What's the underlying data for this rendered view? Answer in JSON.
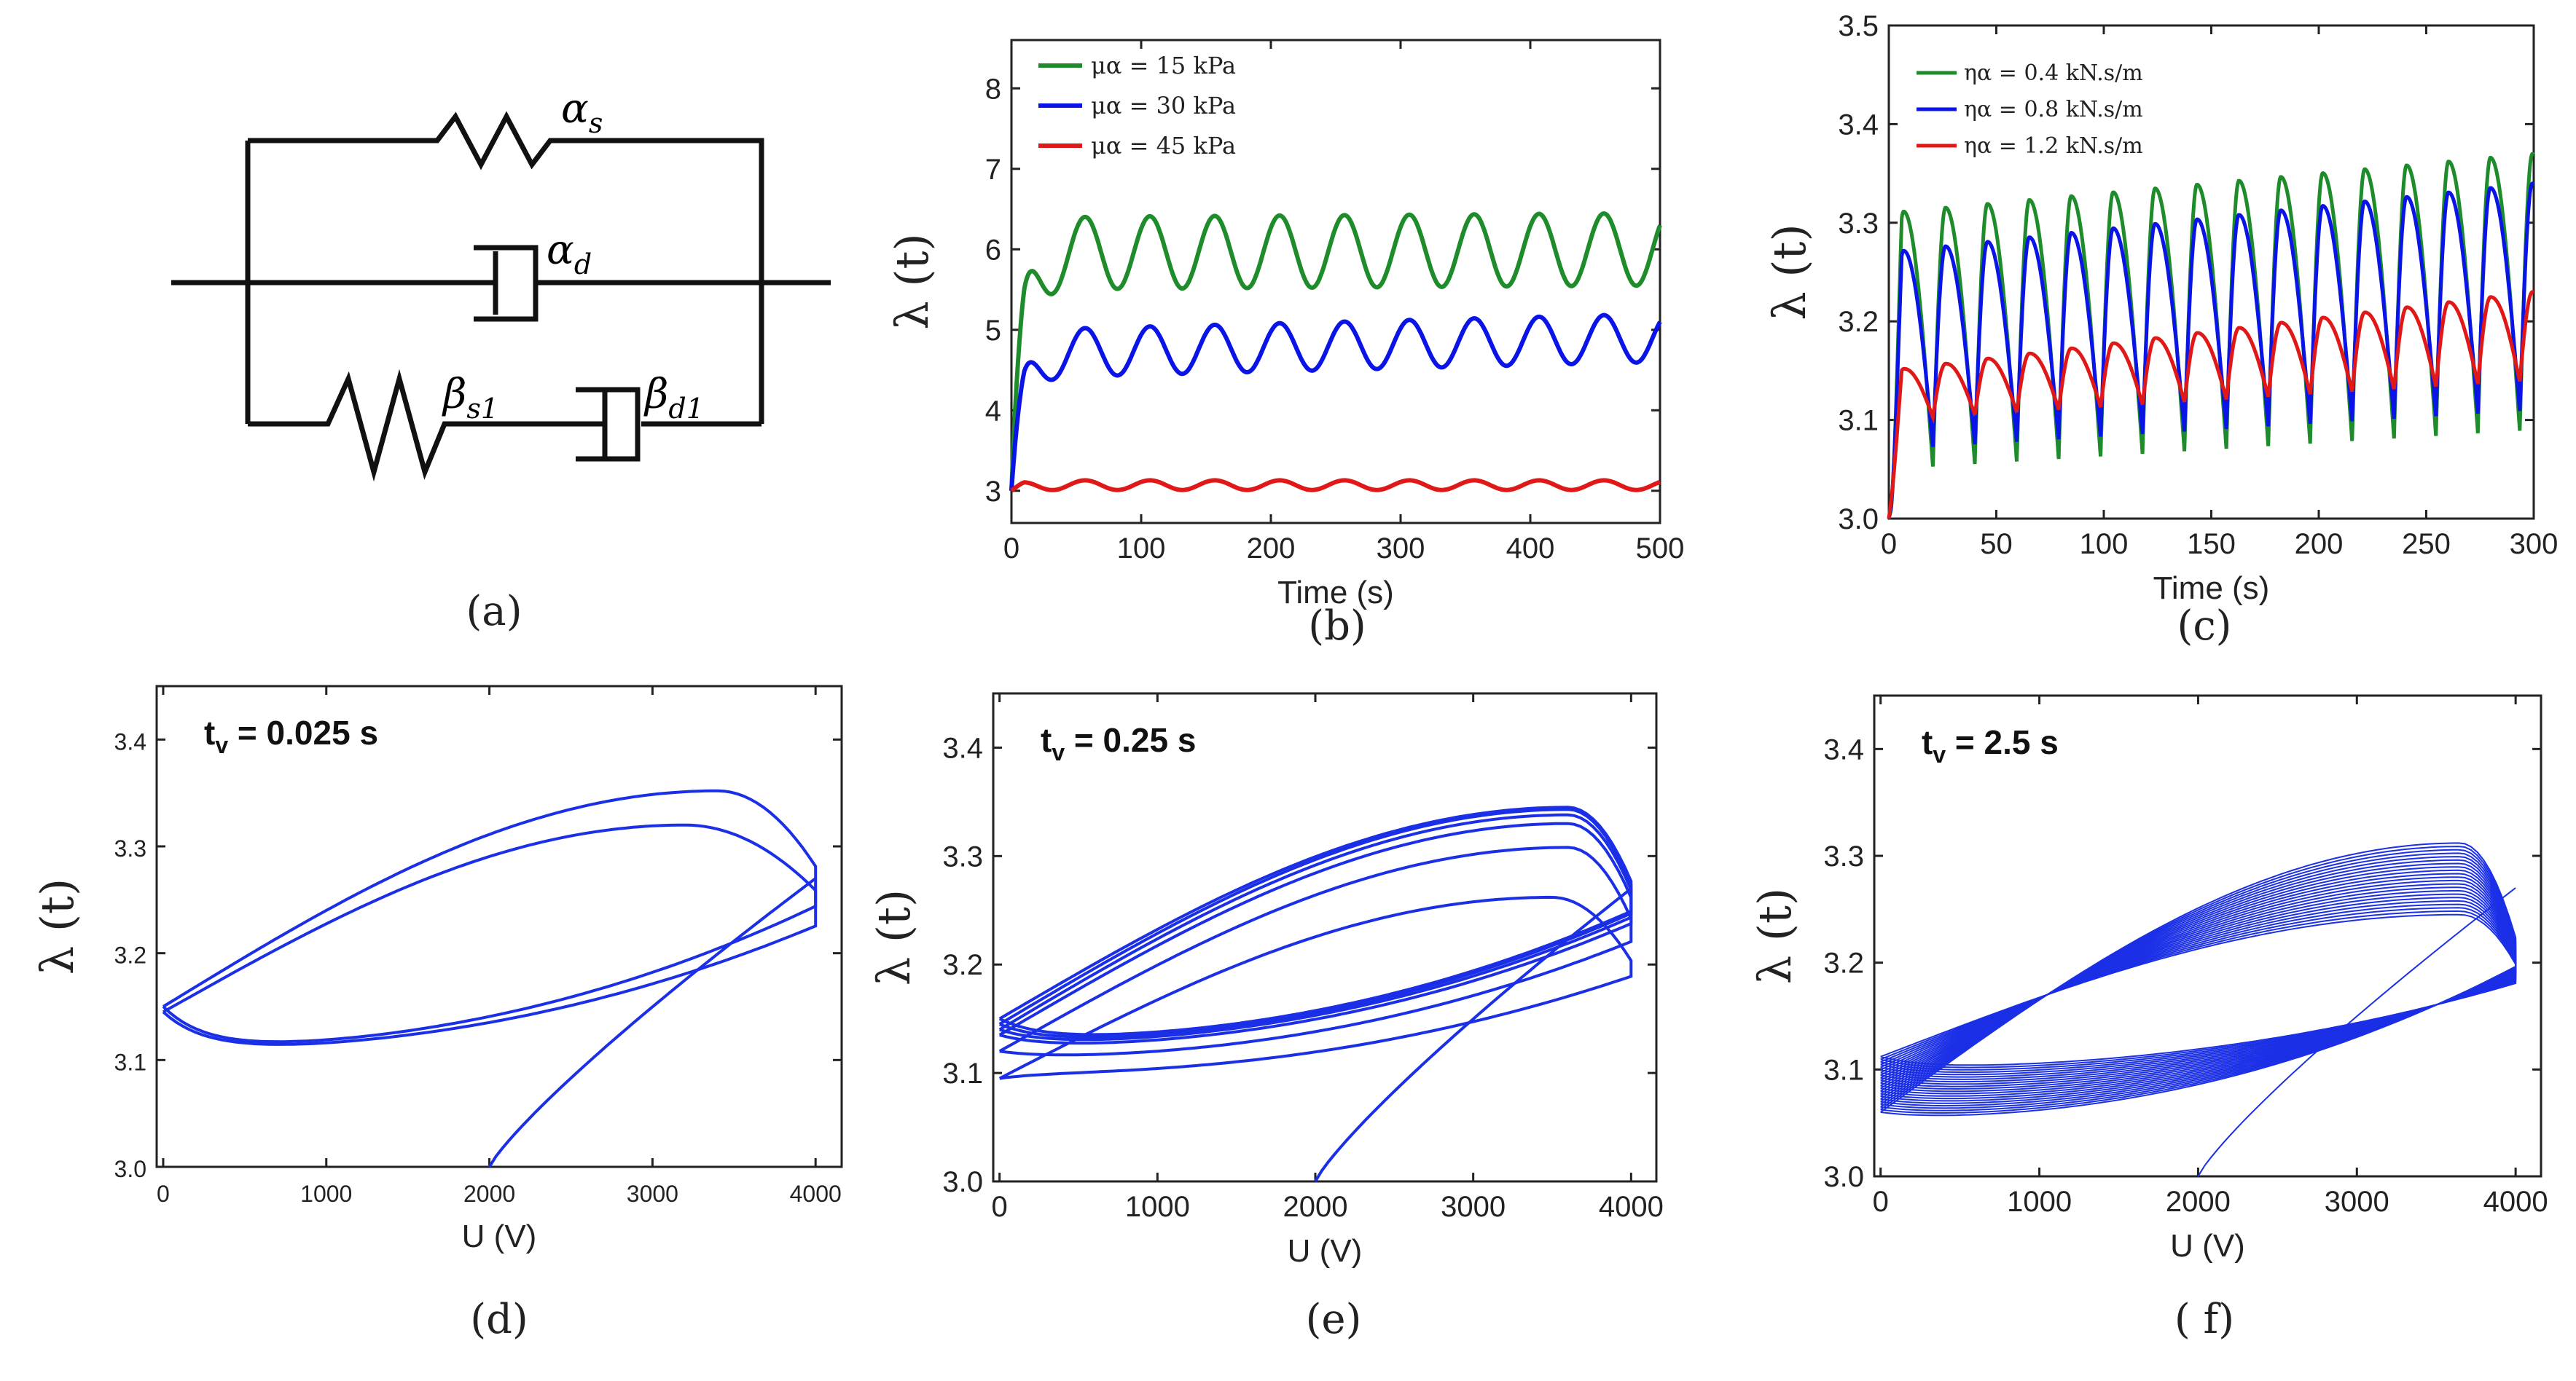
{
  "diagram": {
    "labels": {
      "alpha_s": {
        "base": "α",
        "sub": "s"
      },
      "alpha_d": {
        "base": "α",
        "sub": "d"
      },
      "beta_s1": {
        "base": "β",
        "sub": "s1"
      },
      "beta_d1": {
        "base": "β",
        "sub": "d1"
      }
    }
  },
  "captions": [
    "(a)",
    "(b)",
    "(c)",
    "(d)",
    "(e)",
    "( f)"
  ],
  "chart_data": [
    {
      "id": "b",
      "type": "line",
      "xlabel": "Time (s)",
      "ylabel": "λ (t)",
      "xlim": [
        0,
        500
      ],
      "ylim": [
        2.6,
        8.6
      ],
      "xticks": [
        "0",
        "100",
        "200",
        "300",
        "400",
        "500"
      ],
      "yticks": [
        "3",
        "4",
        "5",
        "6",
        "7",
        "8"
      ],
      "legend_position": "top-left",
      "series": [
        {
          "name": "μα = 15 kPa",
          "color": "#1e8c2a",
          "base": 3.0,
          "mean": 5.95,
          "amp": 0.45,
          "drift": 0.05,
          "period": 50,
          "rise": 8
        },
        {
          "name": "μα = 30 kPa",
          "color": "#0a14e6",
          "base": 3.0,
          "mean": 4.7,
          "amp": 0.3,
          "drift": 0.2,
          "period": 50,
          "rise": 8
        },
        {
          "name": "μα = 45 kPa",
          "color": "#e01818",
          "base": 3.0,
          "mean": 3.07,
          "amp": 0.06,
          "drift": 0.0,
          "period": 50,
          "rise": 8
        }
      ]
    },
    {
      "id": "c",
      "type": "line",
      "xlabel": "Time (s)",
      "ylabel": "λ (t)",
      "xlim": [
        0,
        300
      ],
      "ylim": [
        3.0,
        3.5
      ],
      "xticks": [
        "0",
        "50",
        "100",
        "150",
        "200",
        "250",
        "300"
      ],
      "yticks": [
        "3.0",
        "3.1",
        "3.2",
        "3.3",
        "3.4",
        "3.5"
      ],
      "legend_position": "top-left",
      "series": [
        {
          "name": "ηα = 0.4 kN.s/m",
          "color": "#1e8c2a",
          "lo": 3.05,
          "hi": 3.31,
          "lo_end": 3.09,
          "hi_end": 3.37,
          "period": 19.5
        },
        {
          "name": "ηα = 0.8 kN.s/m",
          "color": "#0a14e6",
          "lo": 3.07,
          "hi": 3.27,
          "lo_end": 3.11,
          "hi_end": 3.34,
          "period": 19.5
        },
        {
          "name": "ηα = 1.2 kN.s/m",
          "color": "#e01818",
          "lo": 3.1,
          "hi": 3.15,
          "lo_end": 3.14,
          "hi_end": 3.23,
          "period": 19.5
        }
      ]
    },
    {
      "id": "d",
      "type": "line",
      "title": "t_v = 0.025 s",
      "title_base": "t",
      "title_sub": "v",
      "title_rest": " = 0.025 s",
      "xlabel": "U (V)",
      "ylabel": "λ (t)",
      "xlim": [
        -40,
        4160
      ],
      "ylim": [
        3.0,
        3.45
      ],
      "xticks": [
        "0",
        "1000",
        "2000",
        "3000",
        "4000"
      ],
      "yticks": [
        "3.0",
        "3.1",
        "3.2",
        "3.3",
        "3.4"
      ],
      "color": "#1a2fe6",
      "loops": [
        {
          "low": 3.145,
          "mid_low": 3.11,
          "high": 3.32,
          "peak_u": 3200
        },
        {
          "low": 3.15,
          "mid_low": 3.112,
          "high": 3.352,
          "peak_u": 3400
        }
      ],
      "start": [
        2000,
        3.0
      ]
    },
    {
      "id": "e",
      "type": "line",
      "title": "t_v = 0.25 s",
      "title_base": "t",
      "title_sub": "v",
      "title_rest": " = 0.25 s",
      "xlabel": "U (V)",
      "ylabel": "λ (t)",
      "xlim": [
        -40,
        4160
      ],
      "ylim": [
        3.0,
        3.45
      ],
      "xticks": [
        "0",
        "1000",
        "2000",
        "3000",
        "4000"
      ],
      "yticks": [
        "3.0",
        "3.1",
        "3.2",
        "3.3",
        "3.4"
      ],
      "color": "#1a2fe6",
      "loops": [
        {
          "low": 3.095,
          "mid_low": 3.1,
          "high": 3.262,
          "peak_u": 3500
        },
        {
          "low": 3.12,
          "mid_low": 3.115,
          "high": 3.308,
          "peak_u": 3600
        },
        {
          "low": 3.135,
          "mid_low": 3.125,
          "high": 3.33,
          "peak_u": 3600
        },
        {
          "low": 3.14,
          "mid_low": 3.128,
          "high": 3.338,
          "peak_u": 3600
        },
        {
          "low": 3.145,
          "mid_low": 3.13,
          "high": 3.343,
          "peak_u": 3600
        },
        {
          "low": 3.15,
          "mid_low": 3.132,
          "high": 3.345,
          "peak_u": 3600
        }
      ],
      "start": [
        2000,
        3.0
      ]
    },
    {
      "id": "f",
      "type": "line",
      "title": "t_v = 2.5 s",
      "title_base": "t",
      "title_sub": "v",
      "title_rest": " = 2.5 s",
      "xlabel": "U (V)",
      "ylabel": "λ (t)",
      "xlim": [
        -40,
        4160
      ],
      "ylim": [
        3.0,
        3.45
      ],
      "xticks": [
        "0",
        "1000",
        "2000",
        "3000",
        "4000"
      ],
      "yticks": [
        "3.0",
        "3.1",
        "3.2",
        "3.3",
        "3.4"
      ],
      "color": "#1a2fe6",
      "loop_count": 22,
      "loop_low_range": [
        3.06,
        3.112
      ],
      "loop_high_range": [
        3.245,
        3.312
      ],
      "peak_u": 3650,
      "start": [
        2000,
        3.0
      ]
    }
  ]
}
